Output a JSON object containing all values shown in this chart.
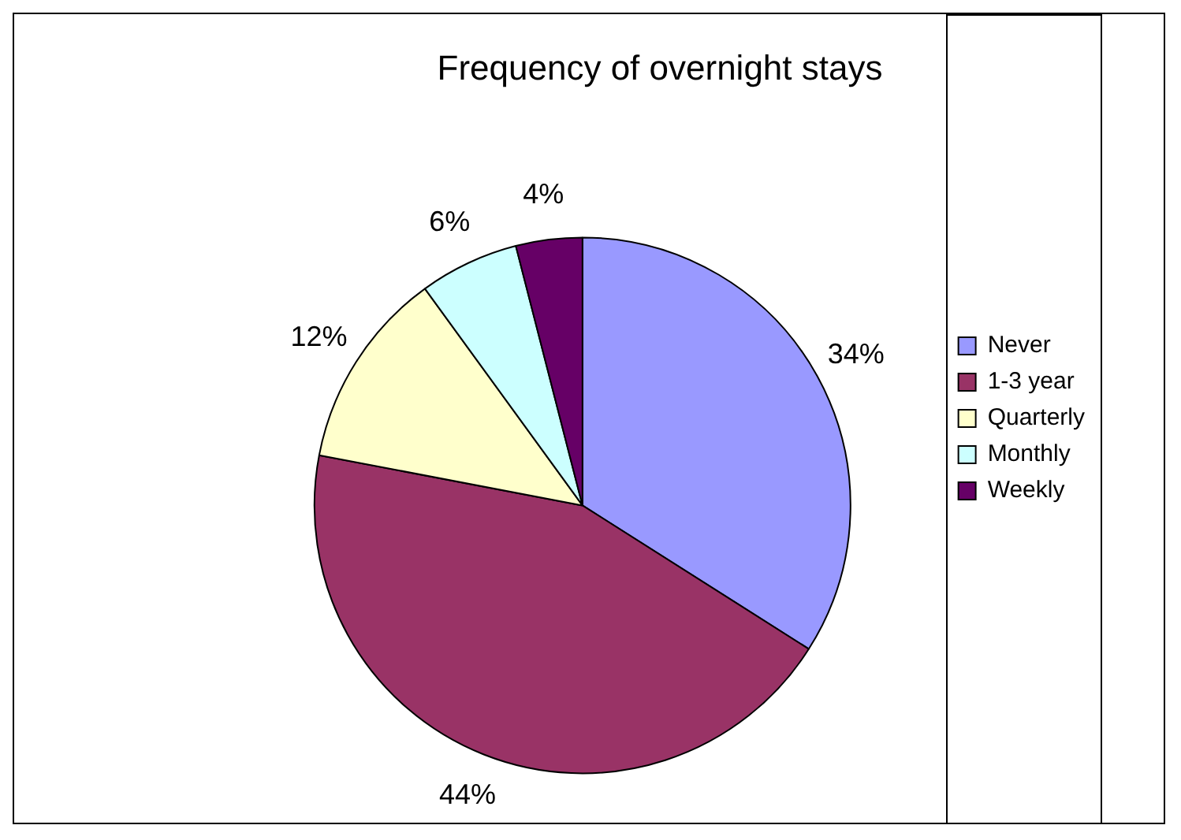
{
  "chart_data": {
    "type": "pie",
    "title": "Frequency of overnight stays",
    "categories": [
      "Never",
      "1-3 year",
      "Quarterly",
      "Monthly",
      "Weekly"
    ],
    "values": [
      34,
      44,
      12,
      6,
      4
    ],
    "value_labels": [
      "34%",
      "44%",
      "12%",
      "6%",
      "4%"
    ],
    "colors": [
      "#9999ff",
      "#993366",
      "#ffffcc",
      "#ccffff",
      "#660066"
    ],
    "legend": "right"
  }
}
